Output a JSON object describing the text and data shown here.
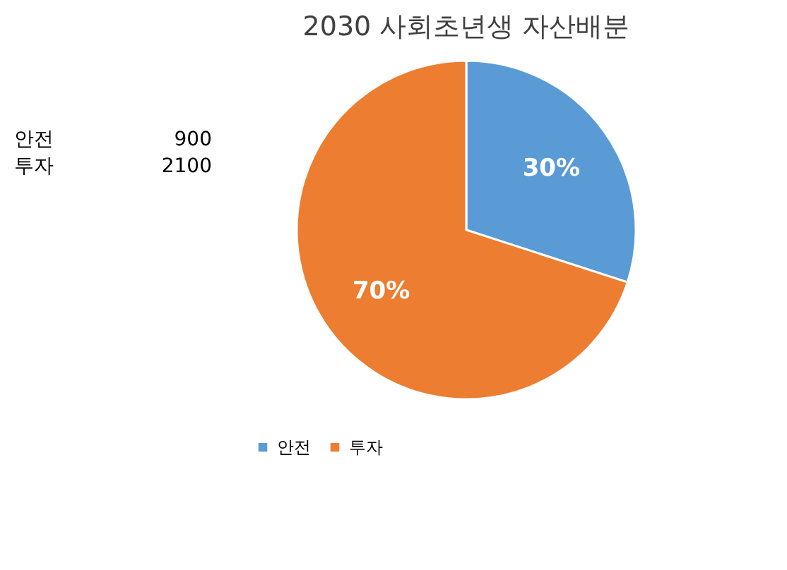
{
  "chart_data": {
    "type": "pie",
    "title": "2030 사회초년생 자산배분",
    "categories": [
      "안전",
      "투자"
    ],
    "values": [
      30,
      70
    ],
    "colors": [
      "#5b9bd5",
      "#ed7d31"
    ],
    "value_labels": [
      "30%",
      "70%"
    ],
    "legend": "bottom",
    "annotations": [
      "안전",
      "900",
      "투자",
      "2100"
    ]
  }
}
